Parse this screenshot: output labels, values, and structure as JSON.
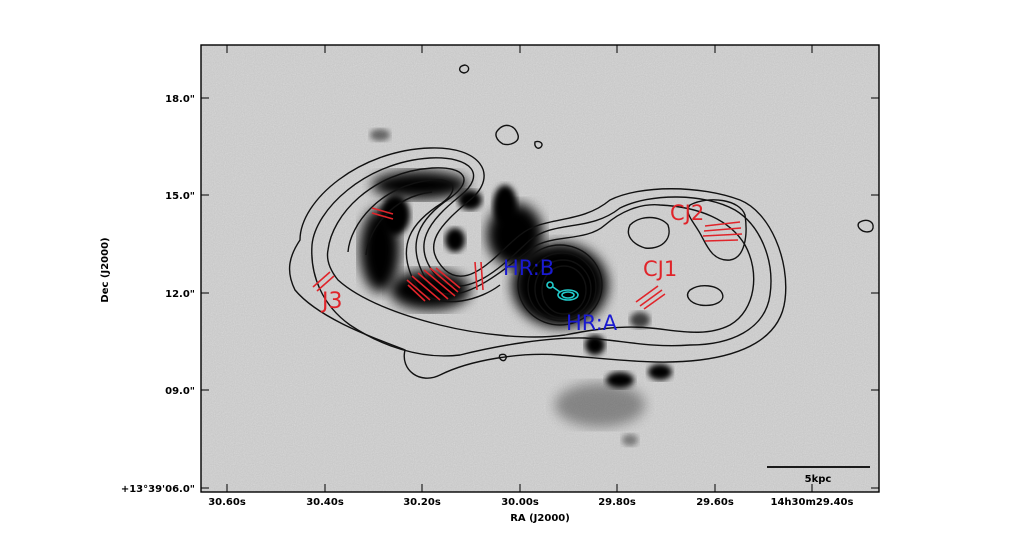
{
  "figure": {
    "axes": {
      "xlabel": "RA (J2000)",
      "ylabel": "Dec (J2000)",
      "x_ticks": [
        "30.60s",
        "30.40s",
        "30.20s",
        "30.00s",
        "29.80s",
        "29.60s",
        "14h30m29.40s"
      ],
      "y_ticks": [
        "18.0\"",
        "15.0\"",
        "12.0\"",
        "09.0\"",
        "+13°39'06.0\""
      ]
    },
    "labels": {
      "j3": "J3",
      "hr_b": "HR:B",
      "hr_a": "HR:A",
      "cj1": "CJ1",
      "cj2": "CJ2"
    },
    "scalebar": {
      "label": "5kpc"
    },
    "colors": {
      "contour": "#111111",
      "vectors": "#e0242a",
      "hr_labels": "#1a1ad0",
      "cyan_contour": "#22cccc",
      "background": "#c6c6c6"
    }
  }
}
